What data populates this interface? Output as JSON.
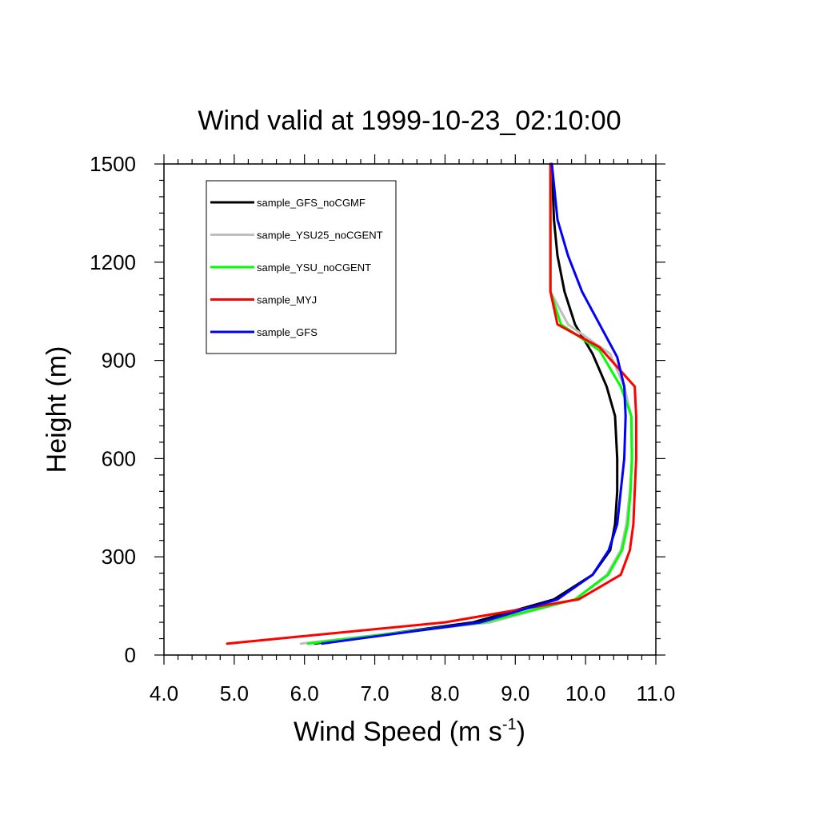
{
  "chart_data": {
    "type": "line",
    "title": "Wind valid at 1999-10-23_02:10:00",
    "xlabel": "Wind Speed (m s",
    "xlabel_superscript": "-1",
    "xlabel_suffix": ")",
    "ylabel": "Height (m)",
    "xlim": [
      4.0,
      11.0
    ],
    "ylim": [
      0,
      1500
    ],
    "x_ticks": [
      "4.0",
      "5.0",
      "6.0",
      "7.0",
      "8.0",
      "9.0",
      "10.0",
      "11.0"
    ],
    "y_ticks": [
      "0",
      "300",
      "600",
      "900",
      "1200",
      "1500"
    ],
    "grid": false,
    "legend_position": "top-left",
    "series": [
      {
        "name": "sample_GFS_noCGMF",
        "color": "#000000",
        "points": [
          [
            6.15,
            35
          ],
          [
            8.4,
            100
          ],
          [
            9.55,
            170
          ],
          [
            10.1,
            245
          ],
          [
            10.35,
            320
          ],
          [
            10.42,
            400
          ],
          [
            10.45,
            500
          ],
          [
            10.45,
            600
          ],
          [
            10.42,
            730
          ],
          [
            10.3,
            820
          ],
          [
            10.1,
            920
          ],
          [
            9.85,
            1010
          ],
          [
            9.7,
            1110
          ],
          [
            9.6,
            1220
          ],
          [
            9.55,
            1330
          ],
          [
            9.52,
            1500
          ]
        ]
      },
      {
        "name": "sample_YSU25_noCGENT",
        "color": "#bebebe",
        "points": [
          [
            5.95,
            35
          ],
          [
            8.65,
            100
          ],
          [
            9.85,
            170
          ],
          [
            10.3,
            245
          ],
          [
            10.5,
            320
          ],
          [
            10.58,
            400
          ],
          [
            10.63,
            500
          ],
          [
            10.66,
            600
          ],
          [
            10.65,
            730
          ],
          [
            10.55,
            820
          ],
          [
            10.35,
            920
          ],
          [
            9.75,
            1010
          ],
          [
            9.5,
            1110
          ],
          [
            9.5,
            1220
          ],
          [
            9.5,
            1330
          ],
          [
            9.5,
            1500
          ]
        ]
      },
      {
        "name": "sample_YSU_noCGENT",
        "color": "#00ff00",
        "points": [
          [
            6.05,
            35
          ],
          [
            8.55,
            100
          ],
          [
            9.85,
            170
          ],
          [
            10.32,
            245
          ],
          [
            10.52,
            320
          ],
          [
            10.6,
            400
          ],
          [
            10.64,
            500
          ],
          [
            10.66,
            600
          ],
          [
            10.65,
            730
          ],
          [
            10.5,
            820
          ],
          [
            10.2,
            930
          ],
          [
            9.65,
            1010
          ],
          [
            9.5,
            1110
          ],
          [
            9.5,
            1220
          ],
          [
            9.5,
            1330
          ],
          [
            9.5,
            1500
          ]
        ]
      },
      {
        "name": "sample_MYJ",
        "color": "#ff0000",
        "points": [
          [
            4.9,
            35
          ],
          [
            8.0,
            100
          ],
          [
            9.9,
            170
          ],
          [
            10.5,
            245
          ],
          [
            10.63,
            320
          ],
          [
            10.68,
            400
          ],
          [
            10.7,
            500
          ],
          [
            10.72,
            600
          ],
          [
            10.72,
            730
          ],
          [
            10.7,
            820
          ],
          [
            10.2,
            940
          ],
          [
            9.6,
            1010
          ],
          [
            9.5,
            1110
          ],
          [
            9.5,
            1220
          ],
          [
            9.5,
            1330
          ],
          [
            9.5,
            1500
          ]
        ]
      },
      {
        "name": "sample_GFS",
        "color": "#0000ff",
        "points": [
          [
            6.25,
            35
          ],
          [
            8.5,
            100
          ],
          [
            9.6,
            170
          ],
          [
            10.1,
            245
          ],
          [
            10.33,
            320
          ],
          [
            10.45,
            400
          ],
          [
            10.5,
            500
          ],
          [
            10.55,
            600
          ],
          [
            10.57,
            730
          ],
          [
            10.55,
            820
          ],
          [
            10.45,
            910
          ],
          [
            10.2,
            1010
          ],
          [
            9.95,
            1110
          ],
          [
            9.75,
            1220
          ],
          [
            9.6,
            1330
          ],
          [
            9.52,
            1500
          ]
        ]
      }
    ]
  }
}
